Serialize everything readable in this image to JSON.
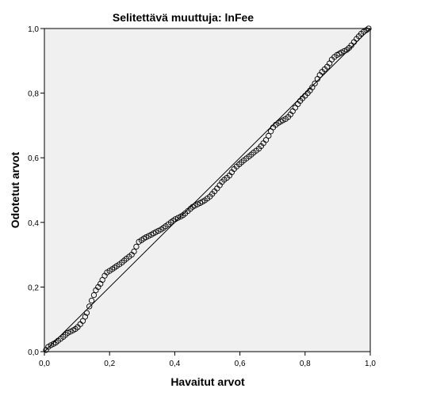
{
  "chart_data": {
    "type": "scatter",
    "title": "Selitettävä muuttuja: lnFee",
    "xlabel": "Havaitut arvot",
    "ylabel": "Odotetut arvot",
    "xlim": [
      0.0,
      1.0
    ],
    "ylim": [
      0.0,
      1.0
    ],
    "x_ticks": [
      "0,0",
      "0,2",
      "0,4",
      "0,6",
      "0,8",
      "1,0"
    ],
    "y_ticks": [
      "0,0",
      "0,2",
      "0,4",
      "0,6",
      "0,8",
      "1,0"
    ],
    "grid": false,
    "background_color": "#f0f0f0",
    "reference_line": {
      "x": [
        0.0,
        1.0
      ],
      "y": [
        0.0,
        1.0
      ]
    },
    "points": [
      [
        0.005,
        0.005
      ],
      [
        0.012,
        0.015
      ],
      [
        0.02,
        0.02
      ],
      [
        0.028,
        0.024
      ],
      [
        0.035,
        0.028
      ],
      [
        0.042,
        0.034
      ],
      [
        0.05,
        0.04
      ],
      [
        0.058,
        0.046
      ],
      [
        0.065,
        0.052
      ],
      [
        0.072,
        0.058
      ],
      [
        0.08,
        0.062
      ],
      [
        0.088,
        0.066
      ],
      [
        0.095,
        0.07
      ],
      [
        0.102,
        0.076
      ],
      [
        0.11,
        0.085
      ],
      [
        0.118,
        0.095
      ],
      [
        0.125,
        0.108
      ],
      [
        0.13,
        0.12
      ],
      [
        0.138,
        0.14
      ],
      [
        0.145,
        0.158
      ],
      [
        0.152,
        0.175
      ],
      [
        0.158,
        0.19
      ],
      [
        0.165,
        0.2
      ],
      [
        0.172,
        0.21
      ],
      [
        0.178,
        0.222
      ],
      [
        0.185,
        0.235
      ],
      [
        0.192,
        0.245
      ],
      [
        0.2,
        0.25
      ],
      [
        0.208,
        0.255
      ],
      [
        0.215,
        0.26
      ],
      [
        0.222,
        0.265
      ],
      [
        0.23,
        0.27
      ],
      [
        0.238,
        0.276
      ],
      [
        0.245,
        0.282
      ],
      [
        0.252,
        0.288
      ],
      [
        0.26,
        0.294
      ],
      [
        0.268,
        0.3
      ],
      [
        0.275,
        0.31
      ],
      [
        0.282,
        0.325
      ],
      [
        0.29,
        0.34
      ],
      [
        0.298,
        0.345
      ],
      [
        0.305,
        0.35
      ],
      [
        0.312,
        0.354
      ],
      [
        0.32,
        0.358
      ],
      [
        0.328,
        0.362
      ],
      [
        0.335,
        0.366
      ],
      [
        0.342,
        0.37
      ],
      [
        0.35,
        0.374
      ],
      [
        0.358,
        0.378
      ],
      [
        0.365,
        0.383
      ],
      [
        0.372,
        0.388
      ],
      [
        0.38,
        0.394
      ],
      [
        0.388,
        0.4
      ],
      [
        0.395,
        0.405
      ],
      [
        0.402,
        0.41
      ],
      [
        0.41,
        0.414
      ],
      [
        0.418,
        0.418
      ],
      [
        0.425,
        0.422
      ],
      [
        0.432,
        0.428
      ],
      [
        0.44,
        0.435
      ],
      [
        0.448,
        0.442
      ],
      [
        0.455,
        0.448
      ],
      [
        0.462,
        0.452
      ],
      [
        0.47,
        0.456
      ],
      [
        0.478,
        0.46
      ],
      [
        0.485,
        0.464
      ],
      [
        0.492,
        0.468
      ],
      [
        0.5,
        0.474
      ],
      [
        0.508,
        0.48
      ],
      [
        0.515,
        0.488
      ],
      [
        0.522,
        0.496
      ],
      [
        0.53,
        0.505
      ],
      [
        0.538,
        0.515
      ],
      [
        0.545,
        0.525
      ],
      [
        0.552,
        0.532
      ],
      [
        0.56,
        0.538
      ],
      [
        0.568,
        0.545
      ],
      [
        0.575,
        0.555
      ],
      [
        0.582,
        0.565
      ],
      [
        0.59,
        0.573
      ],
      [
        0.598,
        0.58
      ],
      [
        0.605,
        0.586
      ],
      [
        0.612,
        0.592
      ],
      [
        0.62,
        0.598
      ],
      [
        0.628,
        0.604
      ],
      [
        0.635,
        0.61
      ],
      [
        0.642,
        0.616
      ],
      [
        0.65,
        0.622
      ],
      [
        0.658,
        0.628
      ],
      [
        0.665,
        0.636
      ],
      [
        0.672,
        0.645
      ],
      [
        0.68,
        0.655
      ],
      [
        0.688,
        0.668
      ],
      [
        0.695,
        0.682
      ],
      [
        0.702,
        0.694
      ],
      [
        0.71,
        0.702
      ],
      [
        0.718,
        0.708
      ],
      [
        0.725,
        0.712
      ],
      [
        0.732,
        0.716
      ],
      [
        0.74,
        0.72
      ],
      [
        0.748,
        0.726
      ],
      [
        0.755,
        0.734
      ],
      [
        0.762,
        0.744
      ],
      [
        0.77,
        0.755
      ],
      [
        0.778,
        0.766
      ],
      [
        0.785,
        0.776
      ],
      [
        0.792,
        0.784
      ],
      [
        0.8,
        0.792
      ],
      [
        0.808,
        0.8
      ],
      [
        0.815,
        0.808
      ],
      [
        0.822,
        0.818
      ],
      [
        0.83,
        0.83
      ],
      [
        0.838,
        0.844
      ],
      [
        0.845,
        0.856
      ],
      [
        0.852,
        0.866
      ],
      [
        0.86,
        0.874
      ],
      [
        0.868,
        0.882
      ],
      [
        0.875,
        0.892
      ],
      [
        0.882,
        0.904
      ],
      [
        0.89,
        0.912
      ],
      [
        0.898,
        0.918
      ],
      [
        0.905,
        0.922
      ],
      [
        0.912,
        0.926
      ],
      [
        0.92,
        0.93
      ],
      [
        0.928,
        0.934
      ],
      [
        0.935,
        0.94
      ],
      [
        0.942,
        0.948
      ],
      [
        0.95,
        0.958
      ],
      [
        0.958,
        0.968
      ],
      [
        0.965,
        0.976
      ],
      [
        0.972,
        0.984
      ],
      [
        0.98,
        0.99
      ],
      [
        0.988,
        0.995
      ],
      [
        0.995,
        1.0
      ]
    ]
  }
}
